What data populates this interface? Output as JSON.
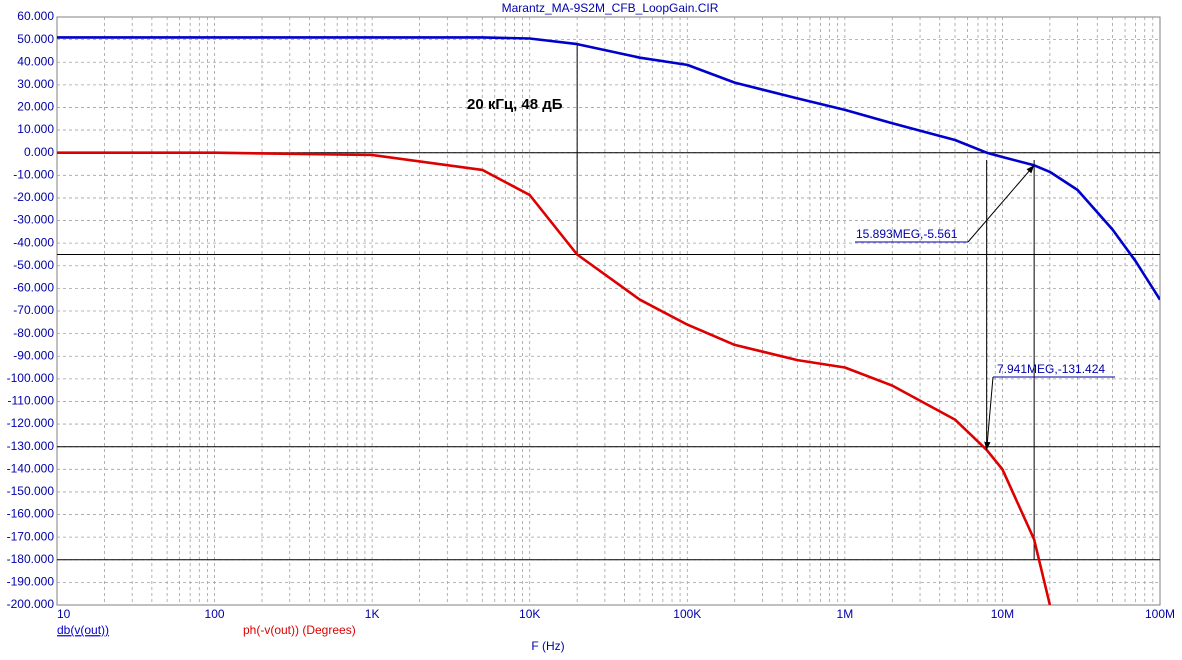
{
  "chart_data": {
    "type": "line",
    "title": "Marantz_MA-9S2M_CFB_LoopGain.CIR",
    "xlabel": "F (Hz)",
    "log_x": true,
    "grid": true,
    "x": [
      10,
      100,
      1000,
      5000,
      10000,
      20000,
      50000,
      100000,
      200000,
      500000,
      1000000,
      2000000,
      5000000,
      7941000,
      10000000,
      15893000,
      20000000,
      30000000,
      50000000,
      70000000,
      100000000
    ],
    "series": [
      {
        "name": "db(v(out))",
        "color": "#0000cc",
        "values": [
          51,
          51,
          51,
          51,
          50.5,
          48,
          42,
          38.8,
          31,
          24,
          18.9,
          13,
          5.6,
          0,
          -1.9,
          -5.561,
          -8.5,
          -16.5,
          -34,
          -48,
          -65
        ]
      },
      {
        "name": "ph(-v(out)) (Degrees)",
        "color": "#dd0000",
        "values": [
          0,
          0,
          -1,
          -7.6,
          -18.7,
          -45,
          -65,
          -76,
          -85,
          -91.7,
          -95,
          -103,
          -118,
          -131.424,
          -140,
          -171,
          -200,
          null,
          null,
          null,
          null
        ]
      }
    ],
    "xlim": [
      10,
      100000000
    ],
    "xticks": [
      10,
      100,
      {
        "value": 1000,
        "label": "1K"
      },
      {
        "value": 10000,
        "label": "10K"
      },
      {
        "value": 100000,
        "label": "100K"
      },
      {
        "value": 1000000,
        "label": "1M"
      },
      {
        "value": 10000000,
        "label": "10M"
      },
      {
        "value": 100000000,
        "label": "100M"
      }
    ],
    "ylim": [
      -200,
      60
    ],
    "yticks": [
      {
        "value": 60,
        "label": "60.000"
      },
      {
        "value": 50,
        "label": "50.000"
      },
      {
        "value": 40,
        "label": "40.000"
      },
      {
        "value": 30,
        "label": "30.000"
      },
      {
        "value": 20,
        "label": "20.000"
      },
      {
        "value": 10,
        "label": "10.000"
      },
      {
        "value": 0,
        "label": "0.000"
      },
      {
        "value": -10,
        "label": "-10.000"
      },
      {
        "value": -20,
        "label": "-20.000"
      },
      {
        "value": -30,
        "label": "-30.000"
      },
      {
        "value": -40,
        "label": "-40.000"
      },
      {
        "value": -50,
        "label": "-50.000"
      },
      {
        "value": -60,
        "label": "-60.000"
      },
      {
        "value": -70,
        "label": "-70.000"
      },
      {
        "value": -80,
        "label": "-80.000"
      },
      {
        "value": -90,
        "label": "-90.000"
      },
      {
        "value": -100,
        "label": "-100.000"
      },
      {
        "value": -110,
        "label": "-110.000"
      },
      {
        "value": -120,
        "label": "-120.000"
      },
      {
        "value": -130,
        "label": "-130.000"
      },
      {
        "value": -140,
        "label": "-140.000"
      },
      {
        "value": -150,
        "label": "-150.000"
      },
      {
        "value": -160,
        "label": "-160.000"
      },
      {
        "value": -170,
        "label": "-170.000"
      },
      {
        "value": -180,
        "label": "-180.000"
      },
      {
        "value": -190,
        "label": "-190.000"
      },
      {
        "value": -200,
        "label": "-200.000"
      }
    ],
    "hlines": [
      0,
      -45,
      -130,
      -180
    ],
    "vlines": [
      20000,
      7941000,
      15893000
    ],
    "annotations": [
      {
        "text": "20 кГц, 48 дБ"
      },
      {
        "text": "15.893MEG,-5.561",
        "x": 15893000,
        "y": -5.561
      },
      {
        "text": "7.941MEG,-131.424",
        "x": 7941000,
        "y": -131.424
      }
    ]
  }
}
